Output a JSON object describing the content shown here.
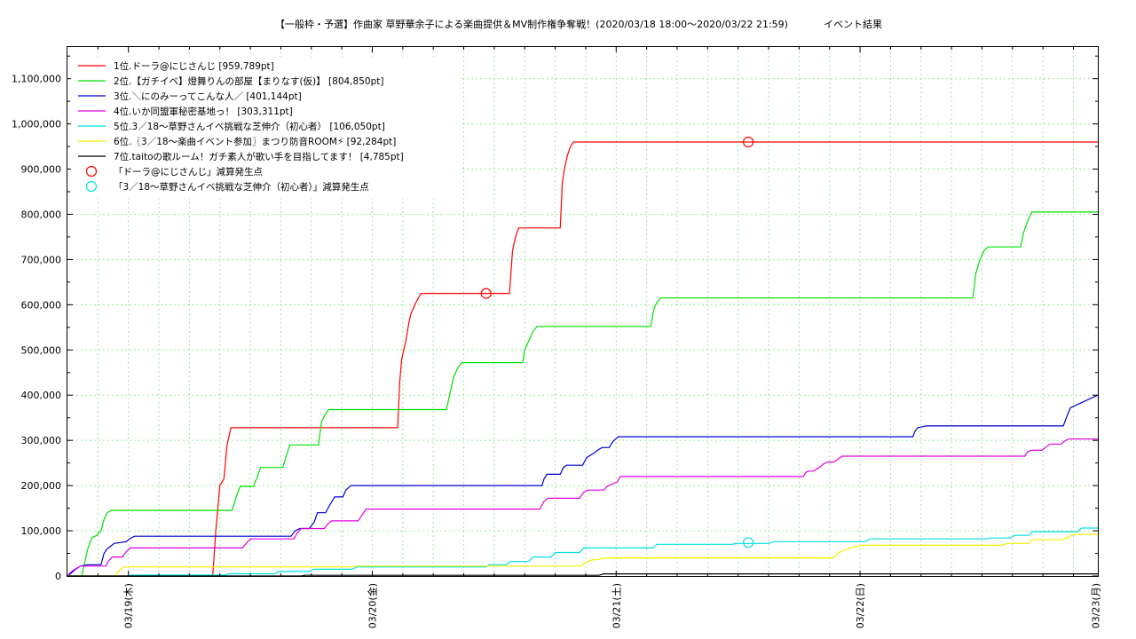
{
  "chart_data": {
    "type": "line",
    "title": "【一般枠・予選】作曲家 草野華余子による楽曲提供＆MV制作権争奪戦！(2020/03/18 18:00〜2020/03/22 21:59)",
    "subtitle": "イベント結果",
    "xlabel": "",
    "ylabel": "",
    "x_unit": "hours since 2020/03/18 00:00",
    "xlim": [
      18.0,
      119.4
    ],
    "ylim": [
      0,
      1170000
    ],
    "yticks": [
      0,
      100000,
      200000,
      300000,
      400000,
      500000,
      600000,
      700000,
      800000,
      900000,
      1000000,
      1100000
    ],
    "ytick_labels": [
      "0",
      "100,000",
      "200,000",
      "300,000",
      "400,000",
      "500,000",
      "600,000",
      "700,000",
      "800,000",
      "900,000",
      "1,000,000",
      "1,100,000"
    ],
    "xticks": [
      {
        "x": 24,
        "label": "03/19(木)"
      },
      {
        "x": 48,
        "label": "03/20(金)"
      },
      {
        "x": 72,
        "label": "03/21(土)"
      },
      {
        "x": 96,
        "label": "03/22(日)"
      },
      {
        "x": 119.2,
        "label": "03/23(月)"
      }
    ],
    "grid": true,
    "legend_position": "top-left",
    "series": [
      {
        "name": "1位.ドーラ@にじさんじ [959,789pt]",
        "color": "#ff0000",
        "x": [
          18,
          32.3,
          32.6,
          33.0,
          33.4,
          33.7,
          34.1,
          34.4,
          34.8,
          35.2,
          50.5,
          50.7,
          50.9,
          51.1,
          51.3,
          51.6,
          51.8,
          52.1,
          52.4,
          52.8,
          53.4,
          61.5,
          61.8,
          62.1,
          62.4,
          62.8,
          66.5,
          66.7,
          66.9,
          67.2,
          67.5,
          67.8,
          68.1,
          119.4
        ],
        "y": [
          0,
          0,
          100000,
          200000,
          215000,
          290000,
          328000,
          328000,
          328000,
          328000,
          328000,
          430000,
          480000,
          500000,
          520000,
          560000,
          580000,
          595000,
          610000,
          625000,
          625000,
          625000,
          720000,
          750000,
          770000,
          770000,
          770000,
          870000,
          900000,
          930000,
          950000,
          960000,
          960000,
          960000
        ]
      },
      {
        "name": "2位.【ガチイベ】燈舞りんの部屋【まりなす(仮)】 [804,850pt]",
        "color": "#00e000",
        "x": [
          18,
          19.4,
          19.7,
          20.0,
          20.4,
          20.9,
          21.3,
          21.6,
          21.9,
          22.3,
          34.2,
          34.6,
          35.0,
          36.3,
          36.7,
          37.0,
          39.2,
          39.6,
          39.9,
          42.7,
          43.0,
          43.3,
          43.7,
          45.1,
          55.3,
          55.7,
          56.0,
          56.4,
          56.8,
          62.8,
          63.0,
          63.4,
          63.8,
          64.2,
          64.7,
          75.4,
          75.7,
          76.0,
          76.4,
          107.1,
          107.4,
          107.8,
          108.2,
          108.6,
          111.8,
          112.1,
          112.5,
          112.9,
          119.4
        ],
        "y": [
          0,
          0,
          30000,
          60000,
          85000,
          90000,
          100000,
          125000,
          140000,
          145000,
          145000,
          175000,
          198000,
          198000,
          220000,
          240000,
          240000,
          270000,
          290000,
          290000,
          340000,
          355000,
          368000,
          368000,
          368000,
          410000,
          440000,
          460000,
          472000,
          472000,
          500000,
          520000,
          540000,
          552000,
          552000,
          552000,
          590000,
          605000,
          615000,
          615000,
          670000,
          700000,
          720000,
          728000,
          728000,
          760000,
          785000,
          805000,
          805000
        ]
      },
      {
        "name": "3位.＼にのみーってこんな人／ [401,144pt]",
        "color": "#0000d0",
        "x": [
          18,
          18.3,
          18.8,
          19.3,
          20.0,
          21.3,
          21.6,
          21.9,
          22.6,
          23.8,
          24.1,
          24.6,
          40.0,
          40.4,
          40.9,
          41.8,
          42.3,
          42.6,
          43.4,
          43.9,
          44.3,
          45.1,
          45.4,
          45.9,
          64.7,
          64.9,
          65.2,
          66.5,
          66.8,
          67.1,
          68.7,
          69.1,
          69.7,
          70.3,
          70.6,
          71.3,
          71.7,
          72.2,
          101.2,
          101.4,
          101.7,
          102.1,
          102.5,
          116.0,
          116.3,
          116.7,
          119.4
        ],
        "y": [
          0,
          5000,
          15000,
          22000,
          25000,
          25000,
          50000,
          60000,
          72000,
          76000,
          82000,
          88000,
          88000,
          100000,
          105000,
          105000,
          120000,
          140000,
          140000,
          160000,
          175000,
          175000,
          190000,
          200000,
          200000,
          215000,
          225000,
          225000,
          240000,
          245000,
          245000,
          262000,
          270000,
          280000,
          284000,
          284000,
          298000,
          308000,
          308000,
          320000,
          328000,
          330000,
          332000,
          332000,
          350000,
          372000,
          400000
        ]
      },
      {
        "name": "4位.いか同盟軍秘密基地っ！ [303,311pt]",
        "color": "#e000e0",
        "x": [
          18,
          18.3,
          18.8,
          19.3,
          21.8,
          22.0,
          22.4,
          23.4,
          23.8,
          24.2,
          35.2,
          35.6,
          36.0,
          40.3,
          40.6,
          41.0,
          43.3,
          43.6,
          44.0,
          46.6,
          47.0,
          47.4,
          64.5,
          64.9,
          65.3,
          68.4,
          68.8,
          69.2,
          70.8,
          71.1,
          71.5,
          72.1,
          72.4,
          90.4,
          90.7,
          91.0,
          91.4,
          92.0,
          92.4,
          92.8,
          93.4,
          93.8,
          94.2,
          112.2,
          112.5,
          112.9,
          113.9,
          114.3,
          114.7,
          115.8,
          116.1,
          116.5,
          119.4
        ],
        "y": [
          0,
          8000,
          16000,
          22000,
          22000,
          32000,
          42000,
          42000,
          54000,
          62000,
          62000,
          72000,
          82000,
          82000,
          95000,
          105000,
          105000,
          115000,
          122000,
          122000,
          135000,
          148000,
          148000,
          165000,
          172000,
          172000,
          185000,
          190000,
          190000,
          198000,
          202000,
          208000,
          220000,
          220000,
          230000,
          232000,
          232000,
          240000,
          248000,
          252000,
          252000,
          258000,
          265000,
          265000,
          275000,
          278000,
          278000,
          285000,
          292000,
          292000,
          298000,
          303000,
          303000
        ]
      },
      {
        "name": "5位.3／18〜草野さんイベ挑戦な芝伸介（初心者） [106,050pt]",
        "color": "#00e0e0",
        "x": [
          18,
          24.0,
          24.3,
          33.5,
          34.0,
          38.4,
          38.8,
          41.8,
          42.2,
          46.0,
          46.5,
          59.2,
          59.5,
          61.2,
          61.6,
          63.4,
          63.8,
          65.6,
          66.0,
          68.4,
          68.8,
          75.6,
          76.0,
          83.4,
          83.8,
          87.0,
          87.5,
          96.5,
          97.0,
          108.4,
          108.8,
          110.8,
          111.2,
          112.6,
          113.0,
          117.4,
          117.8,
          119.4
        ],
        "y": [
          0,
          0,
          2000,
          2000,
          5000,
          5000,
          10000,
          10000,
          15000,
          15000,
          20000,
          20000,
          25000,
          25000,
          32000,
          32000,
          42000,
          42000,
          52000,
          52000,
          62000,
          62000,
          70000,
          70000,
          72000,
          72000,
          76000,
          76000,
          82000,
          82000,
          84000,
          84000,
          90000,
          90000,
          98000,
          98000,
          106000,
          106000
        ]
      },
      {
        "name": "6位.〖3／18〜楽曲イベント参加〗まつり防音ROOM⚡ [92,284pt]",
        "color": "#f0f000",
        "x": [
          18,
          22.7,
          23.0,
          23.5,
          46.0,
          46.5,
          60.0,
          60.4,
          68.5,
          69.0,
          69.5,
          70.5,
          71.0,
          93.4,
          93.8,
          94.2,
          94.8,
          95.5,
          96.2,
          103.0,
          103.4,
          110.0,
          110.5,
          112.6,
          113.0,
          116.0,
          116.4,
          117.0,
          119.4
        ],
        "y": [
          0,
          0,
          10000,
          20000,
          20000,
          22000,
          22000,
          22000,
          22000,
          30000,
          35000,
          38000,
          40000,
          40000,
          50000,
          55000,
          60000,
          65000,
          68000,
          68000,
          68000,
          68000,
          72000,
          72000,
          80000,
          80000,
          85000,
          92000,
          92000
        ]
      },
      {
        "name": "7位.taitoの歌ルーム！ガチ素人が歌い手を目指してます！ [4,785pt]",
        "color": "#000000",
        "x": [
          18,
          41.0,
          41.4,
          70.3,
          70.8,
          119.4
        ],
        "y": [
          0,
          0,
          1500,
          1500,
          4785,
          4785
        ]
      }
    ],
    "markers": [
      {
        "name": "「ドーラ@にじさんじ」減算発生点",
        "color": "#ff0000",
        "points": [
          {
            "x": 59.2,
            "y": 625000
          },
          {
            "x": 85.0,
            "y": 960000
          }
        ]
      },
      {
        "name": "「3／18〜草野さんイベ挑戦な芝伸介（初心者）」減算発生点",
        "color": "#00e0e0",
        "points": [
          {
            "x": 85.0,
            "y": 74000
          }
        ]
      }
    ]
  }
}
